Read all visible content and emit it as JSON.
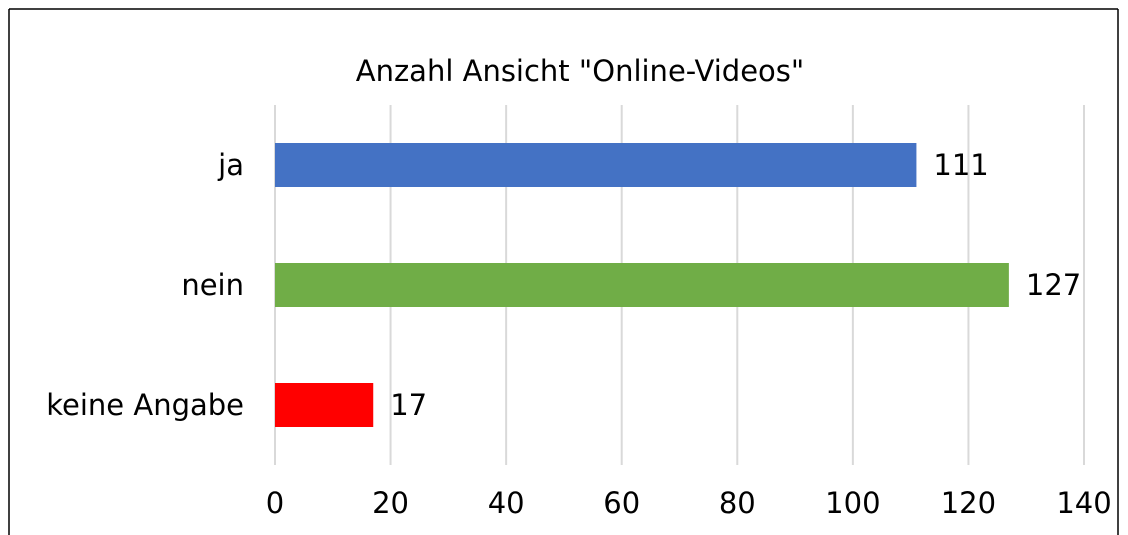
{
  "chart_data": {
    "type": "bar",
    "orientation": "horizontal",
    "title": "Anzahl Ansicht \"Online-Videos\"",
    "categories": [
      "ja",
      "nein",
      "keine Angabe"
    ],
    "values": [
      111,
      127,
      17
    ],
    "colors": [
      "#4472c4",
      "#70ad47",
      "#ff0000"
    ],
    "xlim": [
      0,
      140
    ],
    "xticks": [
      0,
      20,
      40,
      60,
      80,
      100,
      120,
      140
    ],
    "grid": true
  }
}
